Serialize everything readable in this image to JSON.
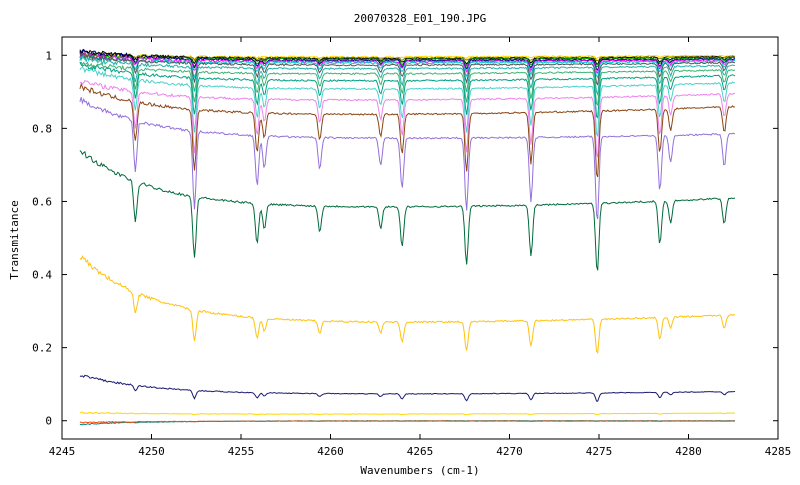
{
  "chart_data": {
    "type": "line",
    "title": "20070328_E01_190.JPG",
    "xlabel": "Wavenumbers (cm-1)",
    "ylabel": "Transmitance",
    "xlim": [
      4245,
      4285
    ],
    "ylim": [
      -0.05,
      1.05
    ],
    "x_ticks": [
      4245,
      4250,
      4255,
      4260,
      4265,
      4270,
      4275,
      4280,
      4285
    ],
    "y_ticks": [
      0,
      0.2,
      0.4,
      0.6,
      0.8,
      1
    ],
    "x_tick_labels": [
      "4245",
      "4250",
      "4255",
      "4260",
      "4265",
      "4270",
      "4275",
      "4280",
      "4285"
    ],
    "y_tick_labels": [
      "0",
      "0.2",
      "0.4",
      "0.6",
      "0.8",
      "1"
    ],
    "grid": false,
    "x_range": [
      4246.0,
      4282.6
    ],
    "absorption_lines": [
      {
        "x": 4249.1,
        "rel": 0.55
      },
      {
        "x": 4252.4,
        "rel": 0.85
      },
      {
        "x": 4255.9,
        "rel": 0.55
      },
      {
        "x": 4256.3,
        "rel": 0.35
      },
      {
        "x": 4259.4,
        "rel": 0.35
      },
      {
        "x": 4262.8,
        "rel": 0.3
      },
      {
        "x": 4264.0,
        "rel": 0.55
      },
      {
        "x": 4267.6,
        "rel": 0.8
      },
      {
        "x": 4271.2,
        "rel": 0.7
      },
      {
        "x": 4274.9,
        "rel": 0.95
      },
      {
        "x": 4278.4,
        "rel": 0.6
      },
      {
        "x": 4279.0,
        "rel": 0.3
      },
      {
        "x": 4282.0,
        "rel": 0.35
      }
    ],
    "series": [
      {
        "color": "#ffd700",
        "start": 1.0,
        "plateau": 0.995,
        "end": 0.999,
        "depth": 0.005
      },
      {
        "color": "#808000",
        "start": 1.005,
        "plateau": 0.992,
        "end": 0.997,
        "depth": 0.01
      },
      {
        "color": "#000000",
        "start": 1.01,
        "plateau": 0.99,
        "end": 0.995,
        "depth": 0.018
      },
      {
        "color": "#00aa00",
        "start": 1.0,
        "plateau": 0.988,
        "end": 0.993,
        "depth": 0.025
      },
      {
        "color": "#000080",
        "start": 1.01,
        "plateau": 0.985,
        "end": 0.99,
        "depth": 0.03
      },
      {
        "color": "#ff00ff",
        "start": 1.0,
        "plateau": 0.982,
        "end": 0.987,
        "depth": 0.035
      },
      {
        "color": "#00ced1",
        "start": 0.995,
        "plateau": 0.978,
        "end": 0.984,
        "depth": 0.045
      },
      {
        "color": "#555555",
        "start": 1.0,
        "plateau": 0.972,
        "end": 0.98,
        "depth": 0.06
      },
      {
        "color": "#20b2aa",
        "start": 0.99,
        "plateau": 0.962,
        "end": 0.972,
        "depth": 0.08
      },
      {
        "color": "#3cb371",
        "start": 0.98,
        "plateau": 0.948,
        "end": 0.96,
        "depth": 0.1
      },
      {
        "color": "#00a080",
        "start": 0.975,
        "plateau": 0.928,
        "end": 0.945,
        "depth": 0.12
      },
      {
        "color": "#48d1cc",
        "start": 0.965,
        "plateau": 0.905,
        "end": 0.925,
        "depth": 0.15
      },
      {
        "color": "#ee82ee",
        "start": 0.93,
        "plateau": 0.875,
        "end": 0.895,
        "depth": 0.18
      },
      {
        "color": "#8b4513",
        "start": 0.915,
        "plateau": 0.835,
        "end": 0.86,
        "depth": 0.2
      },
      {
        "color": "#9370db",
        "start": 0.88,
        "plateau": 0.77,
        "end": 0.785,
        "depth": 0.25
      },
      {
        "color": "#006b3c",
        "start": 0.74,
        "plateau": 0.58,
        "end": 0.61,
        "depth": 0.2
      },
      {
        "color": "#ffc20e",
        "start": 0.45,
        "plateau": 0.265,
        "end": 0.29,
        "depth": 0.1
      },
      {
        "color": "#191970",
        "start": 0.125,
        "plateau": 0.072,
        "end": 0.08,
        "depth": 0.025
      },
      {
        "color": "#ffd700",
        "start": 0.022,
        "plateau": 0.018,
        "end": 0.021,
        "depth": 0.003
      },
      {
        "color": "#008b8b",
        "start": -0.01,
        "plateau": 0.0,
        "end": 0.0,
        "depth": 0.001
      },
      {
        "color": "#ff4500",
        "start": -0.005,
        "plateau": -0.001,
        "end": -0.001,
        "depth": 0.001
      }
    ]
  }
}
